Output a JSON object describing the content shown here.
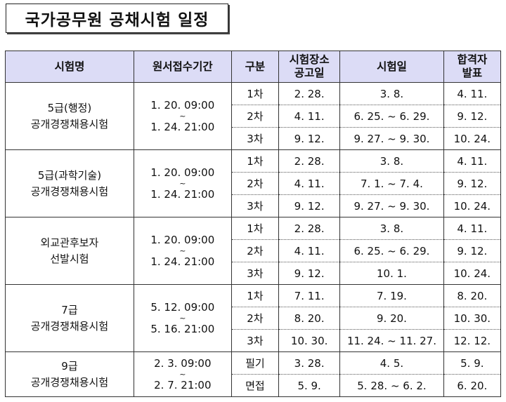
{
  "title": "국가공무원 공채시험 일정",
  "table": {
    "headers": [
      "시험명",
      "원서접수기간",
      "구분",
      "시험장소\n공고일",
      "시험일",
      "합격자\n발표"
    ],
    "groups": [
      {
        "name": [
          "5급(행정)",
          "공개경쟁채용시험"
        ],
        "period": [
          "1. 20.  09:00",
          "~",
          "1. 24.  21:00"
        ],
        "rows": [
          [
            "1차",
            "2. 28.",
            "3. 8.",
            "4. 11."
          ],
          [
            "2차",
            "4. 11.",
            "6. 25. ~ 6. 29.",
            "9. 12."
          ],
          [
            "3차",
            "9. 12.",
            "9. 27. ~ 9. 30.",
            "10. 24."
          ]
        ]
      },
      {
        "name": [
          "5급(과학기술)",
          "공개경쟁채용시험"
        ],
        "period": [
          "1. 20.  09:00",
          "~",
          "1. 24.  21:00"
        ],
        "rows": [
          [
            "1차",
            "2. 28.",
            "3. 8.",
            "4. 11."
          ],
          [
            "2차",
            "4. 11.",
            "7. 1. ~ 7. 4.",
            "9. 12."
          ],
          [
            "3차",
            "9. 12.",
            "9. 27. ~ 9. 30.",
            "10. 24."
          ]
        ]
      },
      {
        "name": [
          "외교관후보자",
          "선발시험"
        ],
        "period": [
          "1. 20.  09:00",
          "~",
          "1. 24.  21:00"
        ],
        "rows": [
          [
            "1차",
            "2. 28.",
            "3. 8.",
            "4. 11."
          ],
          [
            "2차",
            "4. 11.",
            "6. 25. ~ 6. 29.",
            "9. 12."
          ],
          [
            "3차",
            "9. 12.",
            "10. 1.",
            "10. 24."
          ]
        ]
      },
      {
        "name": [
          "7급",
          "공개경쟁채용시험"
        ],
        "period": [
          "5. 12.  09:00",
          "~",
          "5. 16.  21:00"
        ],
        "rows": [
          [
            "1차",
            "7. 11.",
            "7. 19.",
            "8. 20."
          ],
          [
            "2차",
            "8. 20.",
            "9. 20.",
            "10. 30."
          ],
          [
            "3차",
            "10. 30.",
            "11. 24. ~ 11. 27.",
            "12. 12."
          ]
        ]
      },
      {
        "name": [
          "9급",
          "공개경쟁채용시험"
        ],
        "period": [
          "2. 3.  09:00",
          "~",
          "2. 7.  21:00"
        ],
        "rows": [
          [
            "필기",
            "3. 28.",
            "4. 5.",
            "5. 9."
          ],
          [
            "면접",
            "5. 9.",
            "5. 28. ~ 6. 2.",
            "6. 20."
          ]
        ]
      }
    ]
  }
}
